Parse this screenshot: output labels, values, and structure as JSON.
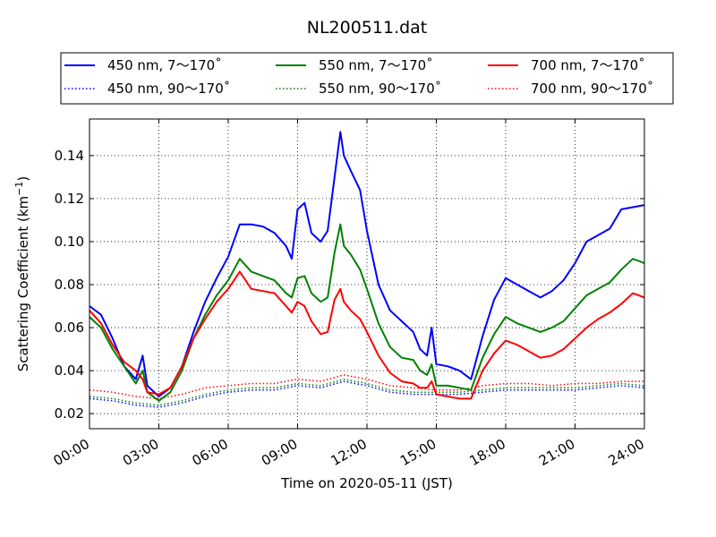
{
  "chart_data": {
    "type": "line",
    "title": "NL200511.dat",
    "xlabel": "Time on 2020-05-11 (JST)",
    "ylabel_main": "Scattering Coefficient (km",
    "ylabel_exp": "−1",
    "ylabel_close": ")",
    "xlim": [
      "2020-05-11 00:00",
      "2020-05-12 00:00"
    ],
    "ylim": [
      0.013,
      0.157
    ],
    "grid": true,
    "legend_placement": "top",
    "x_ticks": [
      "00:00",
      "03:00",
      "06:00",
      "09:00",
      "12:00",
      "15:00",
      "18:00",
      "21:00",
      "24:00"
    ],
    "y_ticks": [
      "0.02",
      "0.04",
      "0.06",
      "0.08",
      "0.10",
      "0.12",
      "0.14"
    ],
    "series": [
      {
        "name": "450 nm, 7～170˚",
        "color": "#0000ff",
        "style": "solid",
        "points": [
          [
            0,
            0.07
          ],
          [
            0.5,
            0.066
          ],
          [
            1,
            0.055
          ],
          [
            1.5,
            0.042
          ],
          [
            2,
            0.036
          ],
          [
            2.3,
            0.047
          ],
          [
            2.5,
            0.033
          ],
          [
            3,
            0.028
          ],
          [
            3.5,
            0.032
          ],
          [
            4,
            0.042
          ],
          [
            4.5,
            0.058
          ],
          [
            5,
            0.072
          ],
          [
            5.5,
            0.083
          ],
          [
            6,
            0.093
          ],
          [
            6.5,
            0.108
          ],
          [
            7,
            0.108
          ],
          [
            7.5,
            0.107
          ],
          [
            8,
            0.104
          ],
          [
            8.5,
            0.098
          ],
          [
            8.75,
            0.092
          ],
          [
            9,
            0.115
          ],
          [
            9.3,
            0.118
          ],
          [
            9.6,
            0.104
          ],
          [
            10,
            0.1
          ],
          [
            10.3,
            0.105
          ],
          [
            10.6,
            0.13
          ],
          [
            10.85,
            0.151
          ],
          [
            11,
            0.14
          ],
          [
            11.3,
            0.133
          ],
          [
            11.7,
            0.124
          ],
          [
            12,
            0.105
          ],
          [
            12.5,
            0.08
          ],
          [
            13,
            0.068
          ],
          [
            13.5,
            0.063
          ],
          [
            14,
            0.058
          ],
          [
            14.3,
            0.05
          ],
          [
            14.6,
            0.047
          ],
          [
            14.8,
            0.06
          ],
          [
            15,
            0.043
          ],
          [
            15.5,
            0.042
          ],
          [
            16,
            0.04
          ],
          [
            16.5,
            0.036
          ],
          [
            17,
            0.056
          ],
          [
            17.5,
            0.073
          ],
          [
            18,
            0.083
          ],
          [
            18.5,
            0.08
          ],
          [
            19,
            0.077
          ],
          [
            19.5,
            0.074
          ],
          [
            20,
            0.077
          ],
          [
            20.5,
            0.082
          ],
          [
            21,
            0.09
          ],
          [
            21.5,
            0.1
          ],
          [
            22,
            0.103
          ],
          [
            22.5,
            0.106
          ],
          [
            23,
            0.115
          ],
          [
            23.5,
            0.116
          ],
          [
            24,
            0.117
          ]
        ]
      },
      {
        "name": "550 nm, 7～170˚",
        "color": "#008000",
        "style": "solid",
        "points": [
          [
            0,
            0.065
          ],
          [
            0.5,
            0.06
          ],
          [
            1,
            0.05
          ],
          [
            1.5,
            0.042
          ],
          [
            2,
            0.034
          ],
          [
            2.3,
            0.04
          ],
          [
            2.5,
            0.03
          ],
          [
            3,
            0.026
          ],
          [
            3.5,
            0.03
          ],
          [
            4,
            0.04
          ],
          [
            4.5,
            0.055
          ],
          [
            5,
            0.066
          ],
          [
            5.5,
            0.075
          ],
          [
            6,
            0.082
          ],
          [
            6.5,
            0.092
          ],
          [
            7,
            0.086
          ],
          [
            7.5,
            0.084
          ],
          [
            8,
            0.082
          ],
          [
            8.5,
            0.076
          ],
          [
            8.75,
            0.074
          ],
          [
            9,
            0.083
          ],
          [
            9.3,
            0.084
          ],
          [
            9.6,
            0.076
          ],
          [
            10,
            0.072
          ],
          [
            10.3,
            0.074
          ],
          [
            10.6,
            0.095
          ],
          [
            10.85,
            0.108
          ],
          [
            11,
            0.098
          ],
          [
            11.3,
            0.094
          ],
          [
            11.7,
            0.087
          ],
          [
            12,
            0.078
          ],
          [
            12.5,
            0.062
          ],
          [
            13,
            0.051
          ],
          [
            13.5,
            0.046
          ],
          [
            14,
            0.045
          ],
          [
            14.3,
            0.04
          ],
          [
            14.6,
            0.038
          ],
          [
            14.8,
            0.043
          ],
          [
            15,
            0.033
          ],
          [
            15.5,
            0.033
          ],
          [
            16,
            0.032
          ],
          [
            16.5,
            0.031
          ],
          [
            17,
            0.046
          ],
          [
            17.5,
            0.057
          ],
          [
            18,
            0.065
          ],
          [
            18.5,
            0.062
          ],
          [
            19,
            0.06
          ],
          [
            19.5,
            0.058
          ],
          [
            20,
            0.06
          ],
          [
            20.5,
            0.063
          ],
          [
            21,
            0.069
          ],
          [
            21.5,
            0.075
          ],
          [
            22,
            0.078
          ],
          [
            22.5,
            0.081
          ],
          [
            23,
            0.087
          ],
          [
            23.5,
            0.092
          ],
          [
            24,
            0.09
          ]
        ]
      },
      {
        "name": "700 nm, 7～170˚",
        "color": "#ff0000",
        "style": "solid",
        "points": [
          [
            0,
            0.068
          ],
          [
            0.5,
            0.062
          ],
          [
            1,
            0.052
          ],
          [
            1.5,
            0.044
          ],
          [
            2,
            0.04
          ],
          [
            2.3,
            0.036
          ],
          [
            2.5,
            0.03
          ],
          [
            3,
            0.029
          ],
          [
            3.5,
            0.032
          ],
          [
            4,
            0.042
          ],
          [
            4.5,
            0.055
          ],
          [
            5,
            0.064
          ],
          [
            5.5,
            0.072
          ],
          [
            6,
            0.078
          ],
          [
            6.5,
            0.086
          ],
          [
            7,
            0.078
          ],
          [
            7.5,
            0.077
          ],
          [
            8,
            0.076
          ],
          [
            8.5,
            0.07
          ],
          [
            8.75,
            0.067
          ],
          [
            9,
            0.072
          ],
          [
            9.3,
            0.07
          ],
          [
            9.6,
            0.063
          ],
          [
            10,
            0.057
          ],
          [
            10.3,
            0.058
          ],
          [
            10.6,
            0.073
          ],
          [
            10.85,
            0.078
          ],
          [
            11,
            0.072
          ],
          [
            11.3,
            0.068
          ],
          [
            11.7,
            0.064
          ],
          [
            12,
            0.058
          ],
          [
            12.5,
            0.047
          ],
          [
            13,
            0.039
          ],
          [
            13.5,
            0.035
          ],
          [
            14,
            0.034
          ],
          [
            14.3,
            0.032
          ],
          [
            14.6,
            0.032
          ],
          [
            14.8,
            0.035
          ],
          [
            15,
            0.029
          ],
          [
            15.5,
            0.028
          ],
          [
            16,
            0.027
          ],
          [
            16.5,
            0.027
          ],
          [
            17,
            0.04
          ],
          [
            17.5,
            0.048
          ],
          [
            18,
            0.054
          ],
          [
            18.5,
            0.052
          ],
          [
            19,
            0.049
          ],
          [
            19.5,
            0.046
          ],
          [
            20,
            0.047
          ],
          [
            20.5,
            0.05
          ],
          [
            21,
            0.055
          ],
          [
            21.5,
            0.06
          ],
          [
            22,
            0.064
          ],
          [
            22.5,
            0.067
          ],
          [
            23,
            0.071
          ],
          [
            23.5,
            0.076
          ],
          [
            24,
            0.074
          ]
        ]
      },
      {
        "name": "450 nm, 90～170˚",
        "color": "#0000ff",
        "style": "dotted",
        "points": [
          [
            0,
            0.027
          ],
          [
            1,
            0.026
          ],
          [
            2,
            0.024
          ],
          [
            3,
            0.023
          ],
          [
            4,
            0.025
          ],
          [
            5,
            0.028
          ],
          [
            6,
            0.03
          ],
          [
            7,
            0.031
          ],
          [
            8,
            0.031
          ],
          [
            9,
            0.033
          ],
          [
            10,
            0.032
          ],
          [
            11,
            0.035
          ],
          [
            12,
            0.033
          ],
          [
            13,
            0.03
          ],
          [
            14,
            0.029
          ],
          [
            15,
            0.029
          ],
          [
            16,
            0.029
          ],
          [
            17,
            0.03
          ],
          [
            18,
            0.031
          ],
          [
            19,
            0.031
          ],
          [
            20,
            0.031
          ],
          [
            21,
            0.031
          ],
          [
            22,
            0.032
          ],
          [
            23,
            0.033
          ],
          [
            24,
            0.032
          ]
        ]
      },
      {
        "name": "550 nm, 90～170˚",
        "color": "#008000",
        "style": "dotted",
        "points": [
          [
            0,
            0.028
          ],
          [
            1,
            0.027
          ],
          [
            2,
            0.025
          ],
          [
            3,
            0.024
          ],
          [
            4,
            0.026
          ],
          [
            5,
            0.029
          ],
          [
            6,
            0.031
          ],
          [
            7,
            0.032
          ],
          [
            8,
            0.032
          ],
          [
            9,
            0.034
          ],
          [
            10,
            0.033
          ],
          [
            11,
            0.036
          ],
          [
            12,
            0.034
          ],
          [
            13,
            0.031
          ],
          [
            14,
            0.03
          ],
          [
            15,
            0.03
          ],
          [
            16,
            0.03
          ],
          [
            17,
            0.031
          ],
          [
            18,
            0.032
          ],
          [
            19,
            0.032
          ],
          [
            20,
            0.032
          ],
          [
            21,
            0.032
          ],
          [
            22,
            0.033
          ],
          [
            23,
            0.034
          ],
          [
            24,
            0.033
          ]
        ]
      },
      {
        "name": "700 nm, 90～170˚",
        "color": "#ff0000",
        "style": "dotted",
        "points": [
          [
            0,
            0.031
          ],
          [
            1,
            0.03
          ],
          [
            2,
            0.028
          ],
          [
            3,
            0.027
          ],
          [
            4,
            0.029
          ],
          [
            5,
            0.032
          ],
          [
            6,
            0.033
          ],
          [
            7,
            0.034
          ],
          [
            8,
            0.034
          ],
          [
            9,
            0.036
          ],
          [
            10,
            0.035
          ],
          [
            11,
            0.038
          ],
          [
            12,
            0.036
          ],
          [
            13,
            0.033
          ],
          [
            14,
            0.032
          ],
          [
            15,
            0.031
          ],
          [
            16,
            0.031
          ],
          [
            17,
            0.033
          ],
          [
            18,
            0.034
          ],
          [
            19,
            0.034
          ],
          [
            20,
            0.033
          ],
          [
            21,
            0.034
          ],
          [
            22,
            0.034
          ],
          [
            23,
            0.035
          ],
          [
            24,
            0.035
          ]
        ]
      }
    ],
    "legend_order": [
      0,
      1,
      2,
      3,
      4,
      5
    ]
  }
}
